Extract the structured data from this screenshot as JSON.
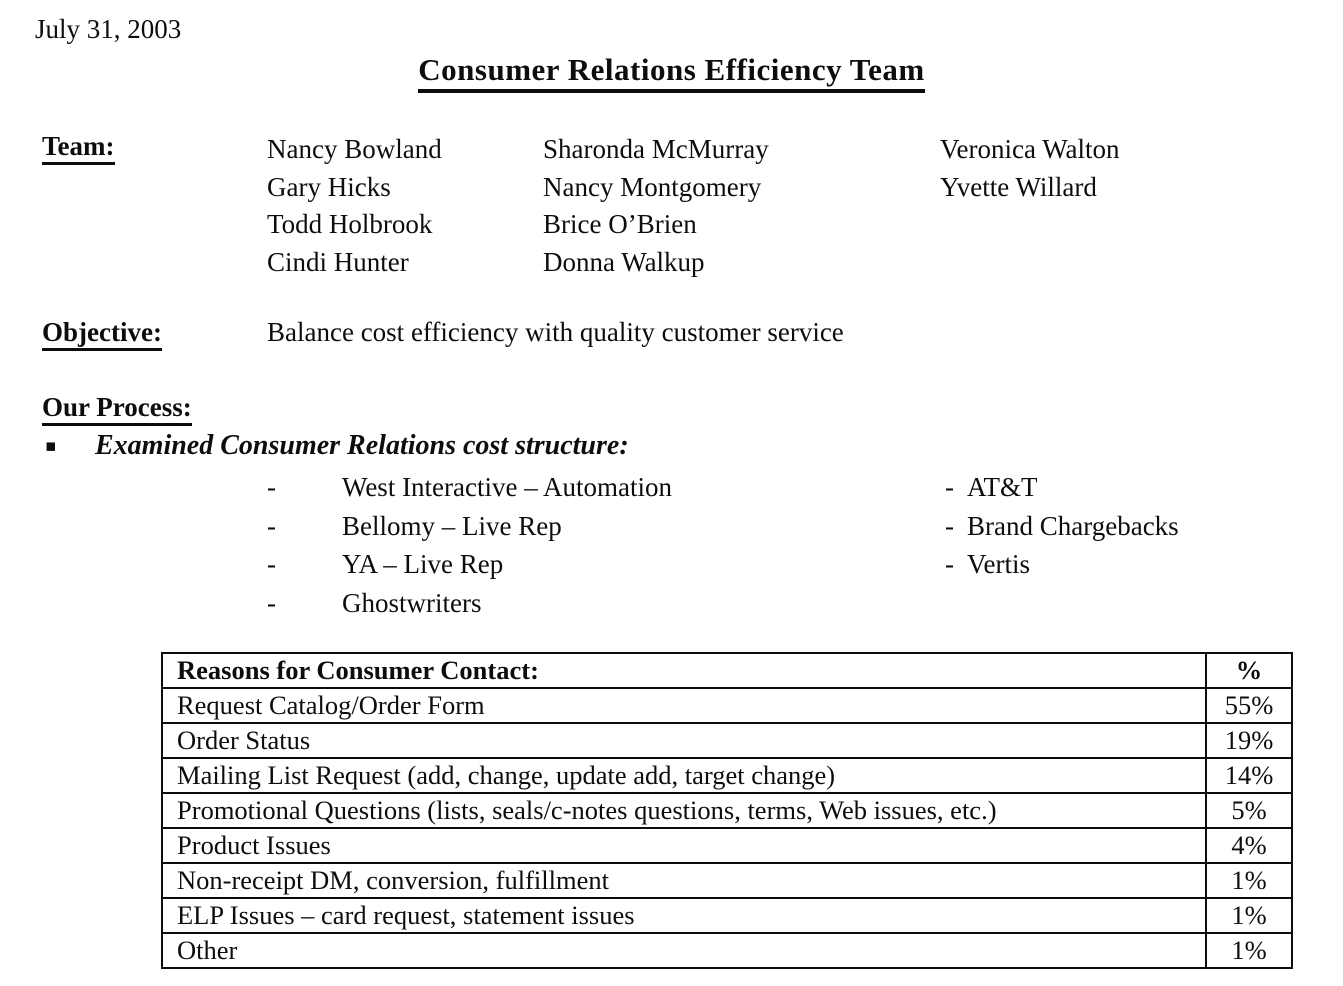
{
  "document": {
    "date": "July 31, 2003",
    "title": "Consumer Relations Efficiency Team",
    "team": {
      "label": "Team:",
      "columns": [
        [
          "Nancy Bowland",
          "Gary Hicks",
          "Todd Holbrook",
          "Cindi Hunter"
        ],
        [
          "Sharonda McMurray",
          "Nancy Montgomery",
          "Brice O’Brien",
          "Donna Walkup"
        ],
        [
          "Veronica Walton",
          "Yvette Willard"
        ]
      ]
    },
    "objective": {
      "label": "Objective:",
      "text": "Balance cost efficiency with quality customer service"
    },
    "process": {
      "label": "Our Process:",
      "bullet_glyph": "▪",
      "bullet_text": "Examined Consumer Relations cost structure:",
      "dash": "-",
      "left_items": [
        "West Interactive – Automation",
        "Bellomy – Live Rep",
        "YA – Live Rep",
        "Ghostwriters"
      ],
      "right_items": [
        "AT&T",
        "Brand Chargebacks",
        "Vertis"
      ]
    },
    "table": {
      "header": [
        "Reasons for Consumer Contact:",
        "%"
      ],
      "rows": [
        [
          "Request Catalog/Order Form",
          "55%"
        ],
        [
          "Order Status",
          "19%"
        ],
        [
          "Mailing List Request (add, change, update add, target change)",
          "14%"
        ],
        [
          "Promotional Questions (lists, seals/c-notes questions, terms, Web issues, etc.)",
          "5%"
        ],
        [
          "Product Issues",
          "4%"
        ],
        [
          "Non-receipt DM, conversion, fulfillment",
          "1%"
        ],
        [
          "ELP Issues – card request, statement issues",
          "1%"
        ],
        [
          "Other",
          "1%"
        ]
      ]
    }
  }
}
